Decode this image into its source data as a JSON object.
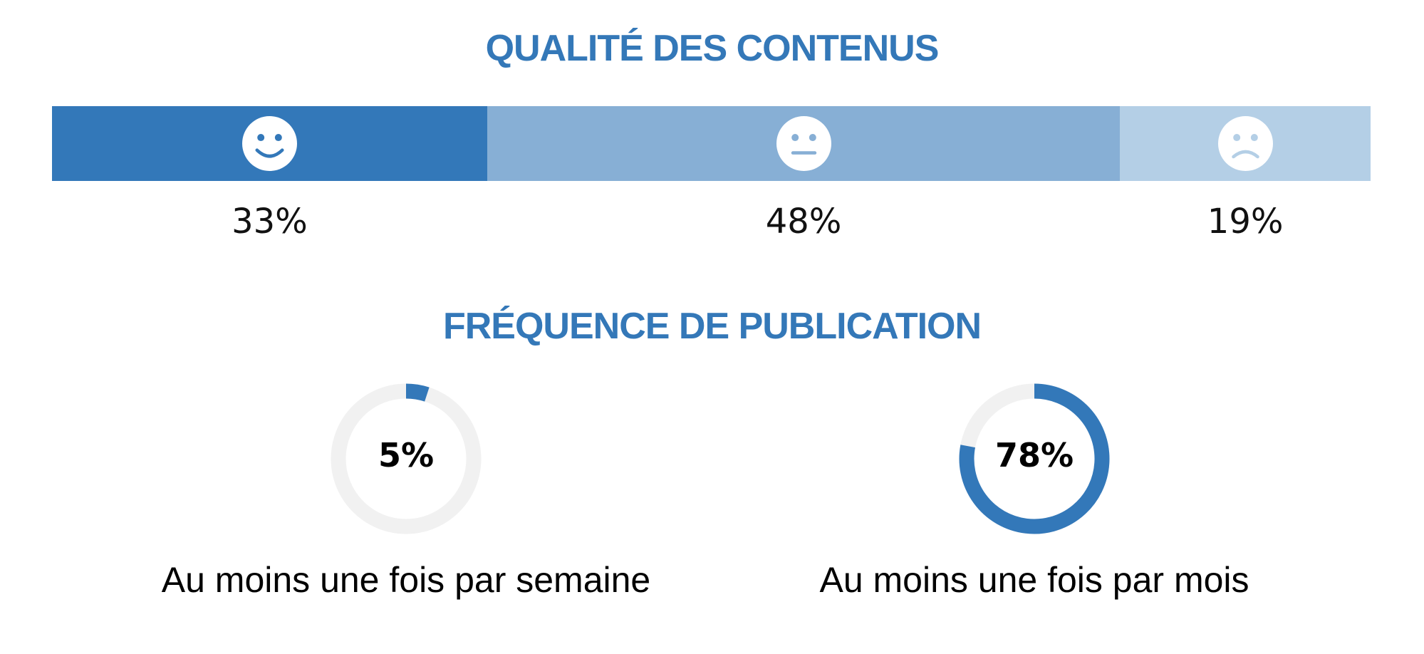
{
  "colors": {
    "title": "#3478b8",
    "accent": "#3378b9",
    "neutral": "#87afd5",
    "light": "#b4cfe6",
    "track": "#f1f1f1"
  },
  "chart_data": [
    {
      "type": "bar",
      "stacked": true,
      "orientation": "horizontal",
      "title": "QUALITÉ DES CONTENUS",
      "xlim": [
        0,
        100
      ],
      "segments": [
        {
          "sentiment": "satisfied",
          "icon": "smiling-face-icon",
          "value": 33,
          "label": "33%"
        },
        {
          "sentiment": "neutral",
          "icon": "neutral-face-icon",
          "value": 48,
          "label": "48%"
        },
        {
          "sentiment": "dissatisfied",
          "icon": "frowning-face-icon",
          "value": 19,
          "label": "19%"
        }
      ]
    },
    {
      "type": "pie",
      "donut": true,
      "title": "FRÉQUENCE DE PUBLICATION",
      "items": [
        {
          "value": 5,
          "value_label": "5%",
          "label": "Au moins une fois par semaine"
        },
        {
          "value": 78,
          "value_label": "78%",
          "label": "Au moins une fois par mois"
        }
      ]
    }
  ]
}
